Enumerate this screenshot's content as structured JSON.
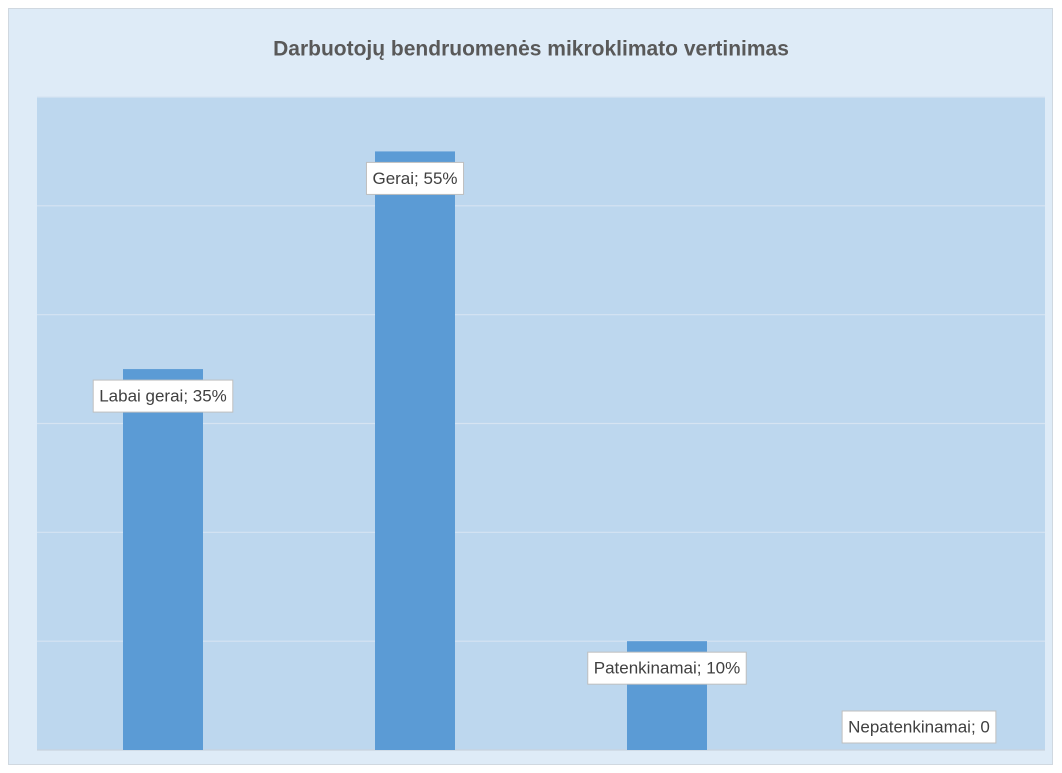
{
  "chart_data": {
    "type": "bar",
    "title": "Darbuotojų bendruomenės mikroklimato vertinimas",
    "values": [
      35,
      55,
      10,
      0
    ],
    "value_labels": [
      "Labai gerai; 35%",
      "Gerai; 55%",
      "Patenkinamai; 10%",
      "Nepatenkinamai; 0"
    ],
    "color": "#5b9bd5",
    "ylim": [
      0,
      60
    ],
    "yticks": [
      0,
      10,
      20,
      30,
      40,
      50,
      60
    ],
    "grid": true
  }
}
